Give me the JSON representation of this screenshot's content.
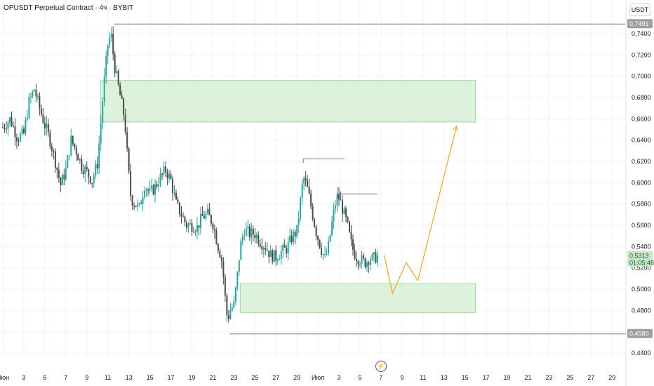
{
  "header": {
    "title": "OPUSDT Perpetual Contract · 4ч · BYBIT",
    "currency": "USDT"
  },
  "colors": {
    "up": "#26a69a",
    "down": "#4a4a4a",
    "zone_fill": "#d8f0d5",
    "zone_stroke": "#8ccf8a",
    "projection": "#f5a623",
    "level_line": "#787b86",
    "price_badge": "#c8e6c9",
    "level_badge": "#9e9e9e"
  },
  "chart_data": {
    "type": "candlestick",
    "ylim": [
      0.43,
      0.76
    ],
    "y_ticks": [
      "0,7400",
      "0,7200",
      "0,7000",
      "0,6800",
      "0,6600",
      "0,6400",
      "0,6200",
      "0,6000",
      "0,5800",
      "0,5600",
      "0,5400",
      "0,5200",
      "0,5000",
      "0,4800",
      "0,4600",
      "0,4400"
    ],
    "x_ticks": [
      "Июн",
      "3",
      "5",
      "7",
      "9",
      "11",
      "13",
      "15",
      "17",
      "19",
      "21",
      "23",
      "25",
      "27",
      "29",
      "Июл",
      "3",
      "5",
      "7",
      "9",
      "11",
      "13",
      "15",
      "17",
      "19",
      "21",
      "23",
      "25",
      "27",
      "29"
    ],
    "price_labels": [
      {
        "value": 0.7491,
        "text": "0,7491",
        "kind": "level"
      },
      {
        "value": 0.5313,
        "text": "0,5313",
        "sub": "01:05:48",
        "kind": "current"
      },
      {
        "value": 0.458,
        "text": "0,4580",
        "kind": "level"
      }
    ],
    "high_level": 0.7491,
    "low_level": 0.458,
    "zones": [
      {
        "top": 0.696,
        "bottom": 0.657
      },
      {
        "top": 0.505,
        "bottom": 0.478
      }
    ],
    "swing_high_lines": [
      0.6225,
      0.5895
    ],
    "projection": [
      {
        "day": 36.3,
        "price": 0.532
      },
      {
        "day": 37.1,
        "price": 0.496
      },
      {
        "day": 38.4,
        "price": 0.525
      },
      {
        "day": 39.5,
        "price": 0.508
      },
      {
        "day": 43.2,
        "price": 0.653
      }
    ],
    "closes": [
      [
        0.0,
        0.652
      ],
      [
        0.7,
        0.66
      ],
      [
        1.4,
        0.642
      ],
      [
        2.0,
        0.646
      ],
      [
        2.5,
        0.676
      ],
      [
        3.0,
        0.688
      ],
      [
        3.5,
        0.67
      ],
      [
        4.0,
        0.654
      ],
      [
        4.5,
        0.64
      ],
      [
        5.0,
        0.62
      ],
      [
        5.5,
        0.598
      ],
      [
        6.0,
        0.612
      ],
      [
        6.5,
        0.64
      ],
      [
        7.0,
        0.63
      ],
      [
        7.5,
        0.616
      ],
      [
        8.0,
        0.61
      ],
      [
        8.5,
        0.602
      ],
      [
        9.0,
        0.618
      ],
      [
        9.3,
        0.652
      ],
      [
        9.6,
        0.69
      ],
      [
        10.0,
        0.73
      ],
      [
        10.3,
        0.74
      ],
      [
        10.6,
        0.712
      ],
      [
        11.0,
        0.69
      ],
      [
        11.3,
        0.675
      ],
      [
        11.6,
        0.66
      ],
      [
        11.9,
        0.618
      ],
      [
        12.2,
        0.585
      ],
      [
        12.6,
        0.58
      ],
      [
        13.0,
        0.576
      ],
      [
        13.5,
        0.598
      ],
      [
        14.0,
        0.59
      ],
      [
        14.5,
        0.596
      ],
      [
        15.0,
        0.605
      ],
      [
        15.5,
        0.612
      ],
      [
        16.0,
        0.602
      ],
      [
        16.5,
        0.58
      ],
      [
        17.0,
        0.57
      ],
      [
        17.5,
        0.56
      ],
      [
        18.0,
        0.56
      ],
      [
        18.5,
        0.558
      ],
      [
        19.0,
        0.568
      ],
      [
        19.5,
        0.57
      ],
      [
        20.0,
        0.562
      ],
      [
        20.5,
        0.54
      ],
      [
        20.8,
        0.53
      ],
      [
        21.0,
        0.512
      ],
      [
        21.2,
        0.488
      ],
      [
        21.4,
        0.47
      ],
      [
        21.6,
        0.48
      ],
      [
        22.0,
        0.485
      ],
      [
        22.3,
        0.51
      ],
      [
        22.6,
        0.54
      ],
      [
        23.0,
        0.556
      ],
      [
        23.5,
        0.552
      ],
      [
        24.0,
        0.552
      ],
      [
        24.5,
        0.545
      ],
      [
        25.0,
        0.54
      ],
      [
        25.5,
        0.532
      ],
      [
        26.0,
        0.53
      ],
      [
        26.5,
        0.535
      ],
      [
        27.0,
        0.538
      ],
      [
        27.5,
        0.548
      ],
      [
        28.0,
        0.555
      ],
      [
        28.3,
        0.58
      ],
      [
        28.6,
        0.605
      ],
      [
        28.9,
        0.598
      ],
      [
        29.2,
        0.585
      ],
      [
        29.5,
        0.57
      ],
      [
        29.8,
        0.555
      ],
      [
        30.1,
        0.545
      ],
      [
        30.4,
        0.535
      ],
      [
        30.7,
        0.528
      ],
      [
        31.0,
        0.54
      ],
      [
        31.3,
        0.56
      ],
      [
        31.6,
        0.578
      ],
      [
        31.9,
        0.588
      ],
      [
        32.2,
        0.58
      ],
      [
        32.5,
        0.57
      ],
      [
        32.8,
        0.56
      ],
      [
        33.1,
        0.545
      ],
      [
        33.4,
        0.535
      ],
      [
        33.7,
        0.53
      ],
      [
        34.0,
        0.528
      ],
      [
        34.3,
        0.526
      ],
      [
        34.6,
        0.525
      ],
      [
        34.9,
        0.53
      ],
      [
        35.2,
        0.528
      ],
      [
        35.5,
        0.53
      ],
      [
        35.8,
        0.5313
      ]
    ]
  }
}
